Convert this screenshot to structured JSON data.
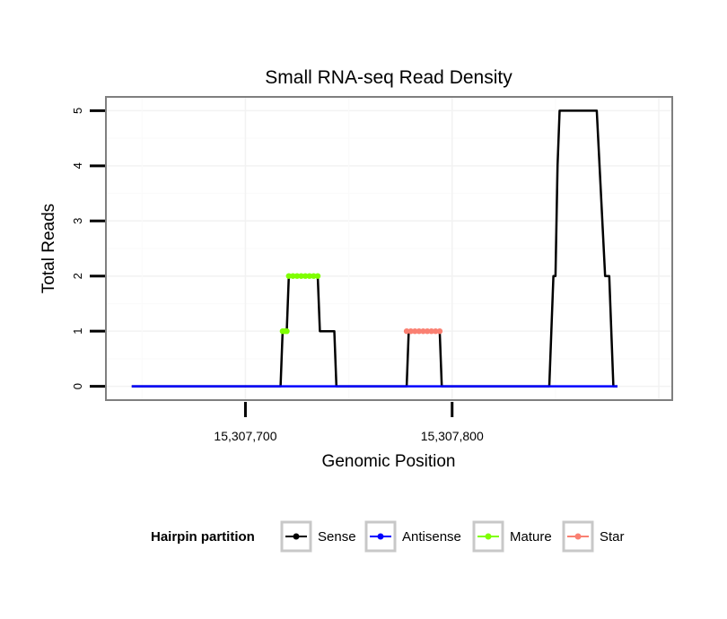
{
  "chart_data": {
    "type": "line",
    "title": "Small RNA-seq Read Density",
    "xlabel": "Genomic Position",
    "ylabel": "Total Reads",
    "xlim": [
      15307632.5,
      15307906.5
    ],
    "ylim": [
      -0.25,
      5.25
    ],
    "x_ticks": [
      15307700,
      15307800
    ],
    "x_tick_labels": [
      "15,307,700",
      "15,307,800"
    ],
    "y_ticks": [
      0,
      1,
      2,
      3,
      4,
      5
    ],
    "y_tick_labels": [
      "0",
      "1",
      "2",
      "3",
      "4",
      "5"
    ],
    "grid": true,
    "legend_position": "bottom",
    "legend_title": "Hairpin partition",
    "series": [
      {
        "name": "Sense",
        "color": "#000000",
        "style": "line",
        "points": [
          [
            15307645,
            0
          ],
          [
            15307717,
            0
          ],
          [
            15307718,
            1
          ],
          [
            15307720,
            1
          ],
          [
            15307721,
            2
          ],
          [
            15307735,
            2
          ],
          [
            15307736,
            1
          ],
          [
            15307743,
            1
          ],
          [
            15307744,
            0
          ],
          [
            15307778,
            0
          ],
          [
            15307779,
            1
          ],
          [
            15307794,
            1
          ],
          [
            15307795,
            0
          ],
          [
            15307847,
            0
          ],
          [
            15307848,
            1
          ],
          [
            15307849,
            2
          ],
          [
            15307850,
            2
          ],
          [
            15307851,
            4
          ],
          [
            15307852,
            5
          ],
          [
            15307870,
            5
          ],
          [
            15307874,
            2
          ],
          [
            15307876,
            2
          ],
          [
            15307878,
            0
          ],
          [
            15307880,
            0
          ]
        ]
      },
      {
        "name": "Antisense",
        "color": "#0000ff",
        "style": "line",
        "points": [
          [
            15307645,
            0
          ],
          [
            15307880,
            0
          ]
        ]
      },
      {
        "name": "Mature",
        "color": "#7fff00",
        "style": "points",
        "points": [
          [
            15307718,
            1
          ],
          [
            15307719,
            1
          ],
          [
            15307720,
            1
          ],
          [
            15307721,
            2
          ],
          [
            15307723,
            2
          ],
          [
            15307725,
            2
          ],
          [
            15307727,
            2
          ],
          [
            15307729,
            2
          ],
          [
            15307731,
            2
          ],
          [
            15307733,
            2
          ],
          [
            15307735,
            2
          ]
        ]
      },
      {
        "name": "Star",
        "color": "#fa8072",
        "style": "points",
        "points": [
          [
            15307778,
            1
          ],
          [
            15307780,
            1
          ],
          [
            15307782,
            1
          ],
          [
            15307784,
            1
          ],
          [
            15307786,
            1
          ],
          [
            15307788,
            1
          ],
          [
            15307790,
            1
          ],
          [
            15307792,
            1
          ],
          [
            15307794,
            1
          ]
        ]
      }
    ]
  }
}
